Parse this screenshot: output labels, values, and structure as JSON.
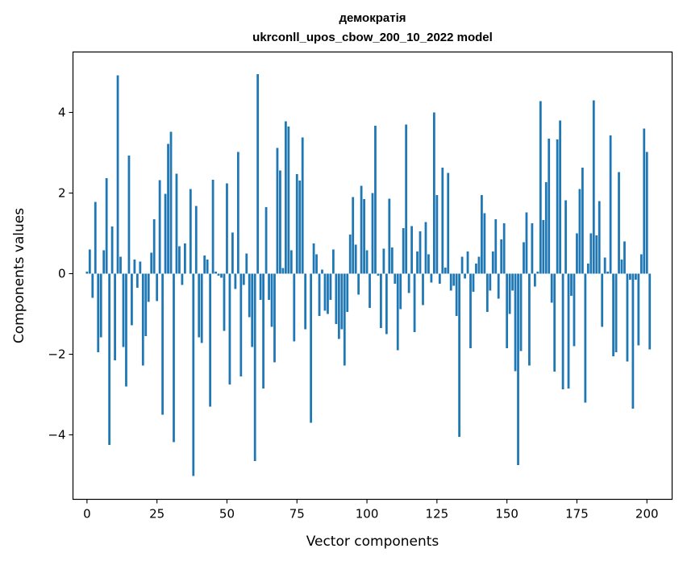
{
  "chart_data": {
    "type": "bar",
    "title": "демократія",
    "subtitle": "ukrconll_upos_cbow_200_10_2022 model",
    "xlabel": "Vector components",
    "ylabel": "Components values",
    "xlim": [
      -5,
      209
    ],
    "ylim": [
      -5.6,
      5.5
    ],
    "xticks": [
      0,
      25,
      50,
      75,
      100,
      125,
      150,
      175,
      200
    ],
    "yticks": [
      -4,
      -2,
      0,
      2,
      4
    ],
    "bar_color": "#1f77b4",
    "grid": false,
    "values": [
      0.05,
      0.6,
      -0.6,
      1.78,
      -1.95,
      -1.58,
      0.58,
      2.37,
      -4.25,
      1.17,
      -2.15,
      4.92,
      0.42,
      -1.82,
      -2.8,
      2.93,
      -1.28,
      0.35,
      -0.35,
      0.3,
      -2.28,
      -1.55,
      -0.7,
      0.52,
      1.35,
      -0.68,
      2.32,
      -3.5,
      1.98,
      3.22,
      3.52,
      -4.18,
      2.48,
      0.68,
      -0.28,
      0.75,
      0.0,
      2.1,
      -5.02,
      1.68,
      -1.58,
      -1.72,
      0.45,
      0.35,
      -3.3,
      2.33,
      0.05,
      -0.05,
      -0.1,
      -1.42,
      2.24,
      -2.75,
      1.02,
      -0.38,
      3.02,
      -2.55,
      -0.28,
      0.5,
      -1.08,
      -1.82,
      -4.65,
      4.95,
      -0.65,
      -2.85,
      1.65,
      -0.65,
      -1.32,
      -2.2,
      3.12,
      2.56,
      0.14,
      3.78,
      3.65,
      0.58,
      -1.68,
      2.47,
      2.31,
      3.38,
      -1.38,
      0.0,
      -3.7,
      0.75,
      0.48,
      -1.05,
      0.1,
      -0.92,
      -1.0,
      -0.65,
      0.6,
      -1.25,
      -1.62,
      -1.38,
      -2.28,
      -0.95,
      0.97,
      1.9,
      0.72,
      -0.52,
      2.18,
      1.85,
      0.58,
      -0.85,
      2.0,
      3.67,
      -0.05,
      -1.35,
      0.62,
      -1.5,
      1.86,
      0.65,
      -0.25,
      -1.9,
      -0.88,
      1.13,
      3.7,
      -0.48,
      1.18,
      -1.45,
      0.55,
      1.05,
      -0.78,
      1.28,
      0.48,
      -0.22,
      4.0,
      1.95,
      -0.25,
      2.63,
      0.15,
      2.5,
      -0.42,
      -0.3,
      -1.05,
      -4.05,
      0.42,
      -0.12,
      0.55,
      -1.85,
      -0.45,
      0.25,
      0.42,
      1.95,
      1.5,
      -0.95,
      -0.42,
      0.55,
      1.35,
      -0.62,
      0.85,
      1.25,
      -1.85,
      -1.0,
      -0.42,
      -2.42,
      -4.75,
      -1.92,
      0.78,
      1.52,
      -2.28,
      1.25,
      -0.32,
      0.05,
      4.28,
      1.33,
      2.27,
      3.35,
      -0.72,
      -2.43,
      3.33,
      3.8,
      -2.87,
      1.82,
      -2.85,
      -0.55,
      -1.8,
      1.0,
      2.1,
      2.63,
      -3.2,
      0.25,
      1.0,
      4.3,
      0.95,
      1.8,
      -1.32,
      0.4,
      0.05,
      3.43,
      -2.05,
      -1.95,
      2.52,
      0.35,
      0.8,
      -2.18,
      -0.15,
      -3.35,
      -0.15,
      -1.78,
      0.48,
      3.6,
      3.02,
      -1.88
    ]
  }
}
